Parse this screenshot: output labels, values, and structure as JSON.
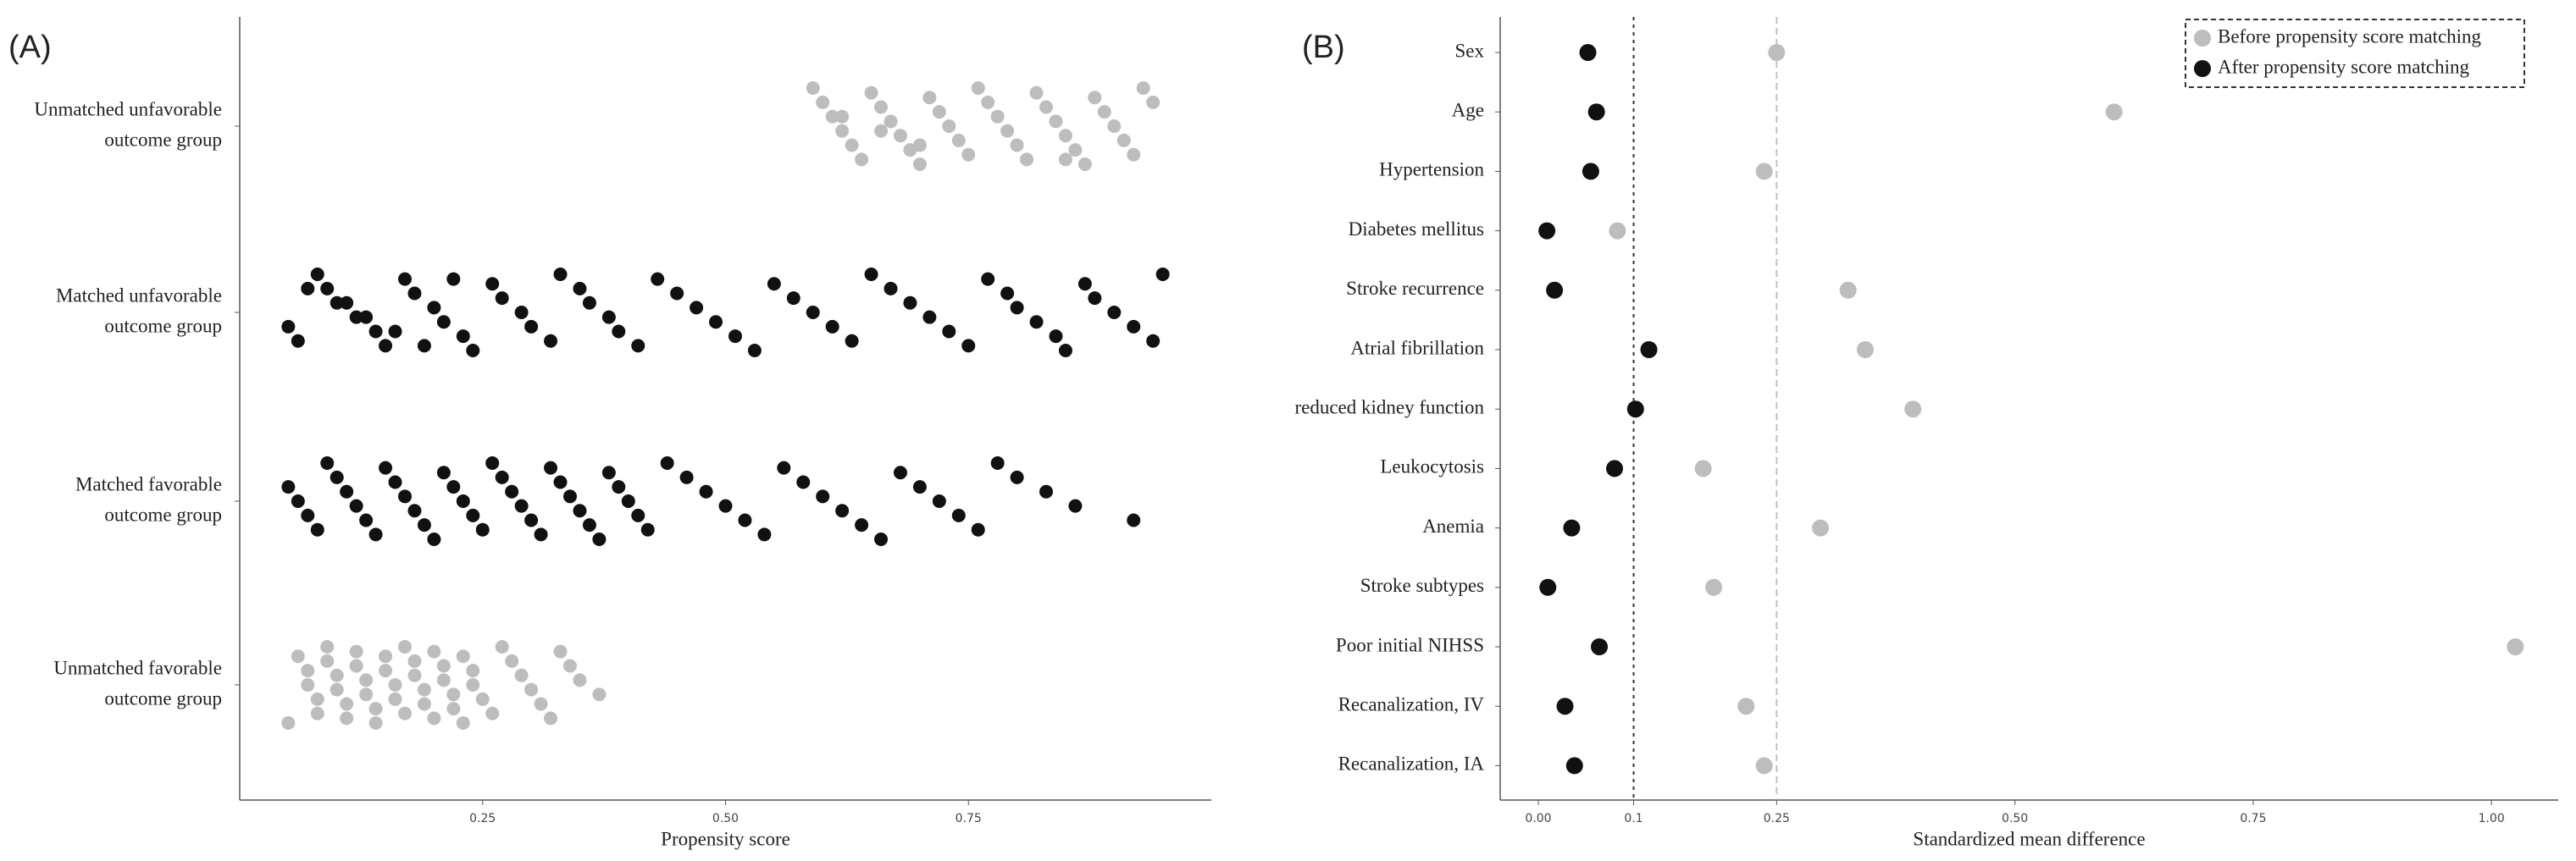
{
  "chart_data": [
    {
      "type": "strip",
      "panel_label": "(A)",
      "xlabel": "Propensity score",
      "xlim": [
        0,
        1
      ],
      "xticks": [
        {
          "value": 0.25,
          "label": "0.25"
        },
        {
          "value": 0.5,
          "label": "0.50"
        },
        {
          "value": 0.75,
          "label": "0.75"
        }
      ],
      "groups": [
        {
          "label": [
            "Unmatched unfavorable",
            "outcome group"
          ],
          "color": "#bdbdbd",
          "values": [
            0.59,
            0.6,
            0.61,
            0.62,
            0.63,
            0.64,
            0.65,
            0.66,
            0.67,
            0.68,
            0.69,
            0.7,
            0.71,
            0.72,
            0.73,
            0.74,
            0.75,
            0.76,
            0.77,
            0.78,
            0.79,
            0.8,
            0.81,
            0.82,
            0.83,
            0.84,
            0.85,
            0.86,
            0.87,
            0.88,
            0.89,
            0.9,
            0.91,
            0.92,
            0.93,
            0.94,
            0.62,
            0.66,
            0.7,
            0.85
          ]
        },
        {
          "label": [
            "Matched unfavorable",
            "outcome group"
          ],
          "color": "#111111",
          "values": [
            0.05,
            0.06,
            0.08,
            0.09,
            0.11,
            0.12,
            0.14,
            0.15,
            0.17,
            0.18,
            0.2,
            0.21,
            0.23,
            0.24,
            0.26,
            0.27,
            0.29,
            0.3,
            0.32,
            0.33,
            0.35,
            0.36,
            0.38,
            0.39,
            0.41,
            0.43,
            0.45,
            0.47,
            0.49,
            0.51,
            0.53,
            0.55,
            0.57,
            0.59,
            0.61,
            0.63,
            0.65,
            0.67,
            0.69,
            0.71,
            0.73,
            0.75,
            0.77,
            0.79,
            0.8,
            0.82,
            0.84,
            0.85,
            0.87,
            0.88,
            0.9,
            0.92,
            0.94,
            0.95,
            0.07,
            0.1,
            0.13,
            0.16,
            0.19,
            0.22
          ]
        },
        {
          "label": [
            "Matched favorable",
            "outcome group"
          ],
          "color": "#111111",
          "values": [
            0.05,
            0.06,
            0.07,
            0.08,
            0.09,
            0.1,
            0.11,
            0.12,
            0.13,
            0.14,
            0.15,
            0.16,
            0.17,
            0.18,
            0.19,
            0.2,
            0.21,
            0.22,
            0.23,
            0.24,
            0.25,
            0.26,
            0.27,
            0.28,
            0.29,
            0.3,
            0.31,
            0.32,
            0.33,
            0.34,
            0.35,
            0.36,
            0.37,
            0.38,
            0.39,
            0.4,
            0.41,
            0.42,
            0.44,
            0.46,
            0.48,
            0.5,
            0.52,
            0.54,
            0.56,
            0.58,
            0.6,
            0.62,
            0.64,
            0.66,
            0.68,
            0.7,
            0.72,
            0.74,
            0.76,
            0.78,
            0.8,
            0.83,
            0.86,
            0.92
          ]
        },
        {
          "label": [
            "Unmatched favorable",
            "outcome group"
          ],
          "color": "#bdbdbd",
          "values": [
            0.05,
            0.06,
            0.07,
            0.07,
            0.08,
            0.08,
            0.09,
            0.09,
            0.1,
            0.1,
            0.11,
            0.11,
            0.12,
            0.12,
            0.13,
            0.13,
            0.14,
            0.14,
            0.15,
            0.15,
            0.16,
            0.16,
            0.17,
            0.17,
            0.18,
            0.18,
            0.19,
            0.19,
            0.2,
            0.2,
            0.21,
            0.21,
            0.22,
            0.22,
            0.23,
            0.23,
            0.24,
            0.24,
            0.25,
            0.26,
            0.27,
            0.28,
            0.29,
            0.3,
            0.31,
            0.32,
            0.33,
            0.34,
            0.35,
            0.37
          ]
        }
      ]
    },
    {
      "type": "dot",
      "panel_label": "(B)",
      "xlabel": "Standardized mean difference",
      "xlim": [
        -0.04,
        1.07
      ],
      "xticks": [
        {
          "value": 0,
          "label": "0.00"
        },
        0.1,
        0.25,
        {
          "value": 0.5,
          "label": "0.50"
        },
        0.75,
        {
          "value": 1,
          "label": "1.00"
        }
      ],
      "reference_lines": [
        {
          "value": 0.1,
          "color": "#333333",
          "dash": "4 5"
        },
        {
          "value": 0.25,
          "color": "#c0c0c0",
          "dash": "8 5"
        }
      ],
      "legend": "top-right",
      "categories": [
        "Sex",
        "Age",
        "Hypertension",
        "Diabetes mellitus",
        "Stroke recurrence",
        "Atrial fibrillation",
        "reduced kidney function",
        "Leukocytosis",
        "Anemia",
        "Stroke subtypes",
        "Poor initial NIHSS",
        "Recanalization, IV",
        "Recanalization, IA"
      ],
      "series": [
        {
          "name": "Before propensity score matching",
          "color": "#bdbdbd",
          "values": [
            0.25,
            0.604,
            0.237,
            0.083,
            0.325,
            0.343,
            0.393,
            0.173,
            0.296,
            0.184,
            1.025,
            0.218,
            0.237
          ]
        },
        {
          "name": "After propensity score matching",
          "color": "#111111",
          "values": [
            0.052,
            0.061,
            0.055,
            0.009,
            0.017,
            0.116,
            0.102,
            0.08,
            0.035,
            0.01,
            0.064,
            0.028,
            0.038
          ]
        }
      ]
    }
  ]
}
